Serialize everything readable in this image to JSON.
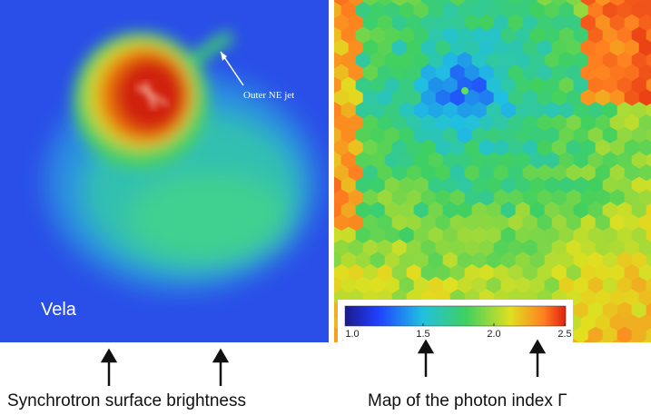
{
  "left_panel": {
    "jet_label": "Outer NE jet",
    "object_label": "Vela",
    "caption": "Synchrotron surface brightness"
  },
  "right_panel": {
    "caption": "Map of the photon index Γ"
  },
  "colorbar": {
    "ticks": [
      {
        "value": 1.0,
        "label": "1.0"
      },
      {
        "value": 1.5,
        "label": "1.5"
      },
      {
        "value": 2.0,
        "label": "2.0"
      },
      {
        "value": 2.5,
        "label": "2.5"
      }
    ]
  }
}
